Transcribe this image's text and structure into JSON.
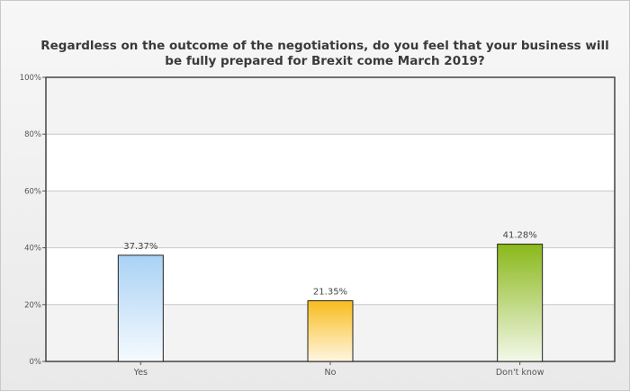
{
  "chart_data": {
    "type": "bar",
    "title": "Regardless on the outcome of the negotiations, do you feel that your business will be fully prepared for Brexit come March 2019?",
    "categories": [
      "Yes",
      "No",
      "Don't know"
    ],
    "values": [
      37.37,
      21.35,
      41.28
    ],
    "value_labels": [
      "37.37%",
      "21.35%",
      "41.28%"
    ],
    "ylim": [
      0,
      100
    ],
    "yticks": [
      0,
      20,
      40,
      60,
      80,
      100
    ],
    "ytick_labels": [
      "0%",
      "20%",
      "40%",
      "60%",
      "80%",
      "100%"
    ],
    "xlabel": "",
    "ylabel": "",
    "grid": true,
    "legend": "none",
    "bar_colors": [
      {
        "top": "#a9d2f5",
        "bottom": "#f6fafe"
      },
      {
        "top": "#f7bd1c",
        "bottom": "#fff6e2"
      },
      {
        "top": "#8ab81a",
        "bottom": "#f4f8ea"
      }
    ],
    "colors": {
      "band_light": "#ffffff",
      "band_dark": "#f3f3f3",
      "grid": "#c8c8c8",
      "axis": "#555555"
    }
  }
}
